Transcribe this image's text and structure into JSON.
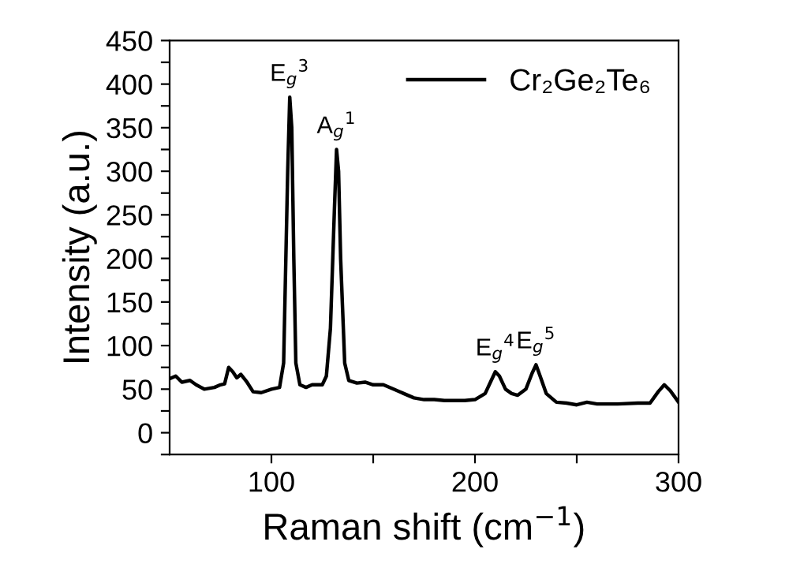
{
  "chart_data": {
    "type": "line",
    "xlabel": "Raman shift (cm$^{−1}$)",
    "ylabel": "Intensity (a.u.)",
    "xlim": [
      50,
      300
    ],
    "xticks": [
      100,
      {
        "value": 150,
        "label": null
      },
      200,
      {
        "value": 250,
        "label": null
      },
      300
    ],
    "ylim": [
      -25,
      450
    ],
    "yticks": [
      {
        "value": -25,
        "label": null
      },
      0,
      {
        "value": 25,
        "label": null
      },
      50,
      {
        "value": 75,
        "label": null
      },
      100,
      {
        "value": 125,
        "label": null
      },
      150,
      {
        "value": 175,
        "label": null
      },
      200,
      {
        "value": 225,
        "label": null
      },
      250,
      {
        "value": 275,
        "label": null
      },
      300,
      {
        "value": 325,
        "label": null
      },
      350,
      {
        "value": 375,
        "label": null
      },
      400,
      {
        "value": 425,
        "label": null
      },
      450
    ],
    "grid": false,
    "legend": "top right",
    "marker": "none",
    "line_style": "solid",
    "annotations": [
      {
        "text": "E$_{g}$$^{3}$",
        "x": 109,
        "y": 385
      },
      {
        "text": "A$_{g}$$^{1}$",
        "x": 132,
        "y": 325
      },
      {
        "text": "E$_{g}$$^{4}$",
        "x": 210,
        "y": 70
      },
      {
        "text": "E$_{g}$$^{5}$",
        "x": 230,
        "y": 78
      }
    ],
    "series": [
      {
        "name": "Cr₂Ge₂Te₆",
        "color": "#000000",
        "x": [
          50,
          53,
          56,
          60,
          63,
          67,
          72,
          75,
          77,
          79,
          81,
          83,
          85,
          88,
          91,
          95,
          100,
          104,
          106,
          108,
          109,
          110,
          111,
          112,
          114,
          117,
          120,
          122,
          125,
          127,
          129,
          131,
          132,
          133,
          134,
          136,
          138,
          142,
          146,
          150,
          155,
          160,
          165,
          170,
          175,
          180,
          185,
          190,
          195,
          200,
          205,
          208,
          210,
          212,
          215,
          218,
          221,
          225,
          228,
          230,
          232,
          235,
          240,
          245,
          250,
          255,
          260,
          270,
          280,
          286,
          290,
          293,
          296,
          300
        ],
        "values": [
          62,
          65,
          58,
          60,
          55,
          50,
          52,
          55,
          56,
          75,
          70,
          63,
          67,
          58,
          47,
          46,
          50,
          52,
          80,
          300,
          385,
          350,
          200,
          80,
          55,
          52,
          55,
          55,
          55,
          65,
          120,
          260,
          325,
          300,
          200,
          80,
          60,
          57,
          58,
          55,
          55,
          50,
          45,
          40,
          38,
          38,
          37,
          37,
          37,
          38,
          45,
          60,
          70,
          65,
          50,
          45,
          43,
          50,
          68,
          78,
          65,
          45,
          35,
          34,
          32,
          35,
          33,
          33,
          34,
          34,
          47,
          55,
          48,
          35
        ]
      }
    ]
  }
}
